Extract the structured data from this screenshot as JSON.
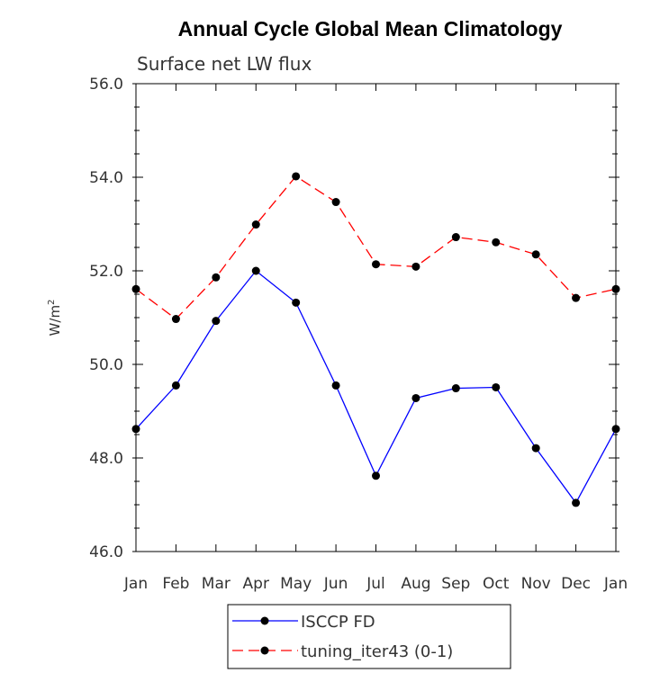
{
  "chart_data": {
    "type": "line",
    "title": "Annual Cycle Global Mean Climatology",
    "subtitle": "Surface net LW flux",
    "xlabel": "",
    "ylabel": "W/m",
    "ylabel_superscript": "2",
    "categories": [
      "Jan",
      "Feb",
      "Mar",
      "Apr",
      "May",
      "Jun",
      "Jul",
      "Aug",
      "Sep",
      "Oct",
      "Nov",
      "Dec",
      "Jan"
    ],
    "ylim": [
      46.0,
      56.0
    ],
    "yticks": [
      "46.0",
      "48.0",
      "50.0",
      "52.0",
      "54.0",
      "56.0"
    ],
    "grid": false,
    "legend_position": "bottom",
    "series": [
      {
        "name": "ISCCP FD",
        "color": "#0000ff",
        "dash": "solid",
        "marker": "circle",
        "values": [
          48.62,
          49.55,
          50.93,
          52.0,
          51.32,
          49.55,
          47.62,
          49.28,
          49.49,
          49.51,
          48.21,
          47.04,
          48.62
        ]
      },
      {
        "name": "tuning_iter43 (0-1)",
        "color": "#ff0000",
        "dash": "dashed",
        "marker": "circle",
        "values": [
          51.61,
          50.97,
          51.86,
          52.99,
          54.02,
          53.47,
          52.14,
          52.09,
          52.72,
          52.61,
          52.35,
          51.42,
          51.61
        ]
      }
    ]
  }
}
